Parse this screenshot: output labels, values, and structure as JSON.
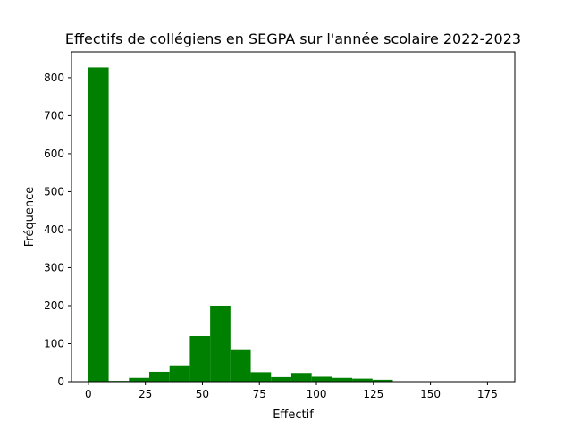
{
  "chart_data": {
    "type": "bar",
    "title": "Effectifs de collégiens en SEGPA sur l'année scolaire 2022-2023",
    "xlabel": "Effectif",
    "ylabel": "Fréquence",
    "bar_color": "#008000",
    "xlim": [
      -7.4,
      187
    ],
    "ylim": [
      0,
      868
    ],
    "xticks": [
      0,
      25,
      50,
      75,
      100,
      125,
      150,
      175
    ],
    "yticks": [
      0,
      100,
      200,
      300,
      400,
      500,
      600,
      700,
      800
    ],
    "bin_edges": [
      0,
      8.9,
      17.8,
      26.7,
      35.6,
      44.5,
      53.4,
      62.3,
      71.2,
      80.1,
      89,
      97.9,
      106.8,
      115.7,
      124.6,
      133.5,
      142.4,
      151.3,
      160.2,
      169.1,
      178
    ],
    "values": [
      827,
      2,
      10,
      26,
      43,
      120,
      200,
      83,
      25,
      12,
      23,
      13,
      10,
      8,
      5,
      0,
      0,
      0,
      0,
      1
    ],
    "grid": false,
    "legend": "none"
  }
}
